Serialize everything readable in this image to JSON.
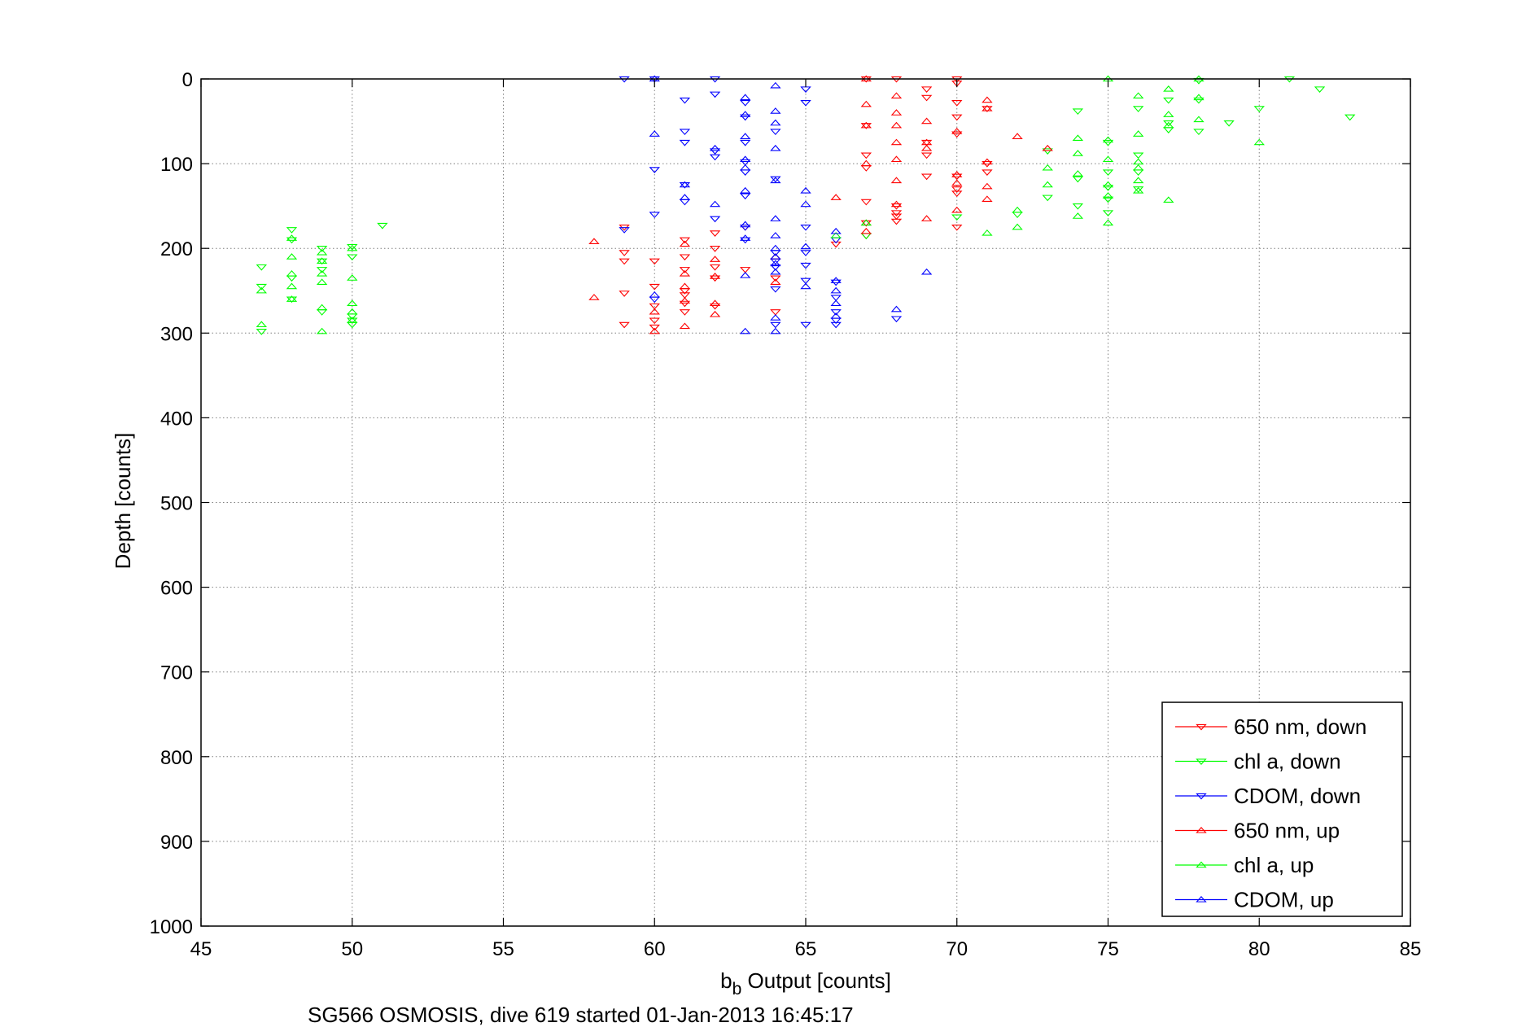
{
  "chart_data": {
    "type": "scatter",
    "title": "",
    "xlabel_base": "b",
    "xlabel_sub": "b",
    "xlabel_rest": " Output [counts]",
    "ylabel": "Depth [counts]",
    "caption": "SG566 OSMOSIS, dive 619 started 01-Jan-2013 16:45:17",
    "xlim": [
      45,
      85
    ],
    "ylim": [
      0,
      1000
    ],
    "y_reversed": true,
    "grid": true,
    "grid_style": "dotted",
    "legend_position": "bottom-right",
    "xticks": [
      "45",
      "50",
      "55",
      "60",
      "65",
      "70",
      "75",
      "80",
      "85"
    ],
    "yticks": [
      "0",
      "100",
      "200",
      "300",
      "400",
      "500",
      "600",
      "700",
      "800",
      "900",
      "1000"
    ],
    "series": [
      {
        "name": "650 nm, down",
        "color": "#ff0000",
        "marker": "triangle-down",
        "points": [
          [
            59,
            175
          ],
          [
            59,
            205
          ],
          [
            59,
            215
          ],
          [
            59,
            253
          ],
          [
            59,
            290
          ],
          [
            60,
            215
          ],
          [
            60,
            245
          ],
          [
            60,
            268
          ],
          [
            60,
            285
          ],
          [
            60,
            293
          ],
          [
            61,
            190
          ],
          [
            61,
            210
          ],
          [
            61,
            225
          ],
          [
            61,
            250
          ],
          [
            61,
            255
          ],
          [
            61,
            265
          ],
          [
            61,
            275
          ],
          [
            62,
            182
          ],
          [
            62,
            200
          ],
          [
            62,
            222
          ],
          [
            62,
            235
          ],
          [
            62,
            268
          ],
          [
            63,
            175
          ],
          [
            63,
            225
          ],
          [
            64,
            235
          ],
          [
            64,
            275
          ],
          [
            66,
            195
          ],
          [
            67,
            0
          ],
          [
            67,
            55
          ],
          [
            67,
            90
          ],
          [
            67,
            105
          ],
          [
            67,
            145
          ],
          [
            67,
            170
          ],
          [
            67,
            185
          ],
          [
            68,
            0
          ],
          [
            68,
            150
          ],
          [
            68,
            158
          ],
          [
            68,
            162
          ],
          [
            68,
            168
          ],
          [
            69,
            12
          ],
          [
            69,
            22
          ],
          [
            69,
            75
          ],
          [
            69,
            90
          ],
          [
            69,
            115
          ],
          [
            70,
            0
          ],
          [
            70,
            5
          ],
          [
            70,
            28
          ],
          [
            70,
            45
          ],
          [
            70,
            65
          ],
          [
            70,
            115
          ],
          [
            70,
            130
          ],
          [
            70,
            135
          ],
          [
            70,
            175
          ],
          [
            71,
            35
          ],
          [
            71,
            100
          ],
          [
            71,
            110
          ]
        ]
      },
      {
        "name": "chl a, down",
        "color": "#00ff00",
        "marker": "triangle-down",
        "points": [
          [
            47,
            222
          ],
          [
            47,
            245
          ],
          [
            47,
            298
          ],
          [
            48,
            178
          ],
          [
            48,
            190
          ],
          [
            48,
            235
          ],
          [
            48,
            260
          ],
          [
            49,
            200
          ],
          [
            49,
            215
          ],
          [
            49,
            225
          ],
          [
            49,
            275
          ],
          [
            50,
            198
          ],
          [
            50,
            210
          ],
          [
            50,
            280
          ],
          [
            50,
            285
          ],
          [
            50,
            290
          ],
          [
            51,
            173
          ],
          [
            67,
            185
          ],
          [
            70,
            163
          ],
          [
            72,
            160
          ],
          [
            73,
            85
          ],
          [
            73,
            140
          ],
          [
            74,
            38
          ],
          [
            74,
            118
          ],
          [
            74,
            150
          ],
          [
            75,
            75
          ],
          [
            75,
            110
          ],
          [
            75,
            128
          ],
          [
            75,
            142
          ],
          [
            75,
            158
          ],
          [
            76,
            35
          ],
          [
            76,
            90
          ],
          [
            76,
            110
          ],
          [
            76,
            130
          ],
          [
            77,
            25
          ],
          [
            77,
            52
          ],
          [
            77,
            60
          ],
          [
            78,
            2
          ],
          [
            78,
            25
          ],
          [
            78,
            62
          ],
          [
            79,
            52
          ],
          [
            80,
            35
          ],
          [
            81,
            0
          ],
          [
            82,
            12
          ],
          [
            83,
            45
          ]
        ]
      },
      {
        "name": "CDOM, down",
        "color": "#0000ff",
        "marker": "triangle-down",
        "points": [
          [
            59,
            0
          ],
          [
            59,
            178
          ],
          [
            60,
            0
          ],
          [
            60,
            107
          ],
          [
            60,
            160
          ],
          [
            60,
            260
          ],
          [
            61,
            25
          ],
          [
            61,
            62
          ],
          [
            61,
            75
          ],
          [
            61,
            125
          ],
          [
            61,
            145
          ],
          [
            62,
            0
          ],
          [
            62,
            18
          ],
          [
            62,
            85
          ],
          [
            62,
            92
          ],
          [
            62,
            165
          ],
          [
            63,
            28
          ],
          [
            63,
            45
          ],
          [
            63,
            75
          ],
          [
            63,
            98
          ],
          [
            63,
            110
          ],
          [
            63,
            138
          ],
          [
            63,
            175
          ],
          [
            63,
            190
          ],
          [
            64,
            62
          ],
          [
            64,
            118
          ],
          [
            64,
            205
          ],
          [
            64,
            215
          ],
          [
            64,
            222
          ],
          [
            64,
            248
          ],
          [
            64,
            290
          ],
          [
            65,
            12
          ],
          [
            65,
            28
          ],
          [
            65,
            175
          ],
          [
            65,
            205
          ],
          [
            65,
            220
          ],
          [
            65,
            238
          ],
          [
            65,
            290
          ],
          [
            66,
            190
          ],
          [
            66,
            240
          ],
          [
            66,
            258
          ],
          [
            66,
            275
          ],
          [
            66,
            285
          ],
          [
            66,
            290
          ],
          [
            68,
            283
          ]
        ]
      },
      {
        "name": "650 nm, up",
        "color": "#ff0000",
        "marker": "triangle-up",
        "points": [
          [
            58,
            192
          ],
          [
            58,
            258
          ],
          [
            60,
            275
          ],
          [
            60,
            298
          ],
          [
            61,
            195
          ],
          [
            61,
            230
          ],
          [
            61,
            245
          ],
          [
            61,
            262
          ],
          [
            61,
            292
          ],
          [
            62,
            213
          ],
          [
            62,
            233
          ],
          [
            62,
            265
          ],
          [
            62,
            278
          ],
          [
            64,
            210
          ],
          [
            64,
            240
          ],
          [
            66,
            140
          ],
          [
            67,
            0
          ],
          [
            67,
            30
          ],
          [
            67,
            55
          ],
          [
            67,
            100
          ],
          [
            67,
            170
          ],
          [
            67,
            180
          ],
          [
            68,
            20
          ],
          [
            68,
            40
          ],
          [
            68,
            55
          ],
          [
            68,
            75
          ],
          [
            68,
            95
          ],
          [
            68,
            120
          ],
          [
            68,
            148
          ],
          [
            69,
            50
          ],
          [
            69,
            75
          ],
          [
            69,
            82
          ],
          [
            69,
            165
          ],
          [
            70,
            62
          ],
          [
            70,
            113
          ],
          [
            70,
            123
          ],
          [
            70,
            155
          ],
          [
            71,
            25
          ],
          [
            71,
            35
          ],
          [
            71,
            98
          ],
          [
            71,
            127
          ],
          [
            71,
            142
          ],
          [
            72,
            68
          ],
          [
            73,
            82
          ]
        ]
      },
      {
        "name": "chl a, up",
        "color": "#00ff00",
        "marker": "triangle-up",
        "points": [
          [
            47,
            250
          ],
          [
            47,
            290
          ],
          [
            48,
            188
          ],
          [
            48,
            210
          ],
          [
            48,
            230
          ],
          [
            48,
            245
          ],
          [
            48,
            260
          ],
          [
            49,
            205
          ],
          [
            49,
            215
          ],
          [
            49,
            230
          ],
          [
            49,
            240
          ],
          [
            49,
            270
          ],
          [
            49,
            298
          ],
          [
            50,
            200
          ],
          [
            50,
            235
          ],
          [
            50,
            265
          ],
          [
            50,
            275
          ],
          [
            50,
            285
          ],
          [
            66,
            185
          ],
          [
            67,
            170
          ],
          [
            71,
            182
          ],
          [
            72,
            155
          ],
          [
            72,
            175
          ],
          [
            73,
            105
          ],
          [
            73,
            125
          ],
          [
            74,
            70
          ],
          [
            74,
            88
          ],
          [
            74,
            112
          ],
          [
            74,
            162
          ],
          [
            75,
            0
          ],
          [
            75,
            72
          ],
          [
            75,
            95
          ],
          [
            75,
            125
          ],
          [
            75,
            138
          ],
          [
            75,
            170
          ],
          [
            76,
            20
          ],
          [
            76,
            65
          ],
          [
            76,
            98
          ],
          [
            76,
            105
          ],
          [
            76,
            120
          ],
          [
            76,
            132
          ],
          [
            77,
            12
          ],
          [
            77,
            42
          ],
          [
            77,
            55
          ],
          [
            77,
            143
          ],
          [
            78,
            0
          ],
          [
            78,
            22
          ],
          [
            78,
            48
          ],
          [
            80,
            75
          ]
        ]
      },
      {
        "name": "CDOM, up",
        "color": "#0000ff",
        "marker": "triangle-up",
        "points": [
          [
            60,
            0
          ],
          [
            60,
            65
          ],
          [
            60,
            255
          ],
          [
            61,
            125
          ],
          [
            61,
            140
          ],
          [
            62,
            82
          ],
          [
            62,
            148
          ],
          [
            63,
            22
          ],
          [
            63,
            42
          ],
          [
            63,
            68
          ],
          [
            63,
            95
          ],
          [
            63,
            105
          ],
          [
            63,
            132
          ],
          [
            63,
            172
          ],
          [
            63,
            188
          ],
          [
            63,
            232
          ],
          [
            63,
            298
          ],
          [
            64,
            8
          ],
          [
            64,
            38
          ],
          [
            64,
            52
          ],
          [
            64,
            82
          ],
          [
            64,
            120
          ],
          [
            64,
            165
          ],
          [
            64,
            185
          ],
          [
            64,
            200
          ],
          [
            64,
            210
          ],
          [
            64,
            218
          ],
          [
            64,
            228
          ],
          [
            64,
            282
          ],
          [
            64,
            298
          ],
          [
            65,
            132
          ],
          [
            65,
            148
          ],
          [
            65,
            198
          ],
          [
            65,
            245
          ],
          [
            66,
            180
          ],
          [
            66,
            238
          ],
          [
            66,
            250
          ],
          [
            66,
            265
          ],
          [
            66,
            280
          ],
          [
            68,
            272
          ],
          [
            69,
            228
          ]
        ]
      }
    ]
  }
}
